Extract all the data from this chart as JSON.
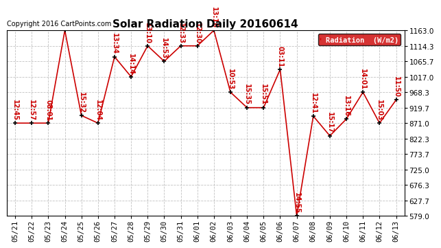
{
  "title": "Solar Radiation Daily 20160614",
  "copyright": "Copyright 2016 CartPoints.com",
  "legend_label": "Radiation  (W/m2)",
  "x_labels": [
    "05/21",
    "05/22",
    "05/23",
    "05/24",
    "05/25",
    "05/26",
    "05/27",
    "05/28",
    "05/29",
    "05/30",
    "05/31",
    "06/01",
    "06/02",
    "06/03",
    "06/04",
    "06/05",
    "06/06",
    "06/07",
    "06/08",
    "06/09",
    "06/10",
    "06/11",
    "06/12",
    "06/13"
  ],
  "y_values": [
    871.0,
    871.0,
    871.0,
    1163.0,
    895.0,
    871.0,
    1080.0,
    1017.0,
    1114.3,
    1065.7,
    1114.3,
    1114.3,
    1163.0,
    968.3,
    919.7,
    919.7,
    1040.0,
    579.0,
    893.0,
    831.0,
    884.0,
    968.3,
    871.0,
    944.0
  ],
  "time_labels": [
    "12:45",
    "12:57",
    "08:01",
    "",
    "15:32",
    "12:04",
    "13:34",
    "14:14",
    "13:10",
    "14:53",
    "12:33",
    "12:30",
    "13:16",
    "10:53",
    "15:35",
    "15:51",
    "03:11",
    "14:55",
    "12:41",
    "15:17",
    "13:16",
    "14:01",
    "15:03",
    "11:50"
  ],
  "label_va": [
    "bottom",
    "bottom",
    "bottom",
    "bottom",
    "bottom",
    "bottom",
    "bottom",
    "bottom",
    "bottom",
    "bottom",
    "bottom",
    "bottom",
    "bottom",
    "bottom",
    "bottom",
    "bottom",
    "bottom",
    "bottom",
    "bottom",
    "bottom",
    "bottom",
    "bottom",
    "bottom",
    "bottom"
  ],
  "ylim_min": 579.0,
  "ylim_max": 1163.0,
  "ytick_values": [
    579.0,
    627.7,
    676.3,
    725.0,
    773.7,
    822.3,
    871.0,
    919.7,
    968.3,
    1017.0,
    1065.7,
    1114.3,
    1163.0
  ],
  "line_color": "#cc0000",
  "marker_color": "#000000",
  "background_color": "#ffffff",
  "grid_color": "#bbbbbb",
  "label_color": "#cc0000",
  "legend_bg": "#cc0000",
  "legend_fg": "#ffffff",
  "title_fontsize": 11,
  "copyright_fontsize": 7,
  "tick_fontsize": 7.5,
  "label_fontsize": 7
}
